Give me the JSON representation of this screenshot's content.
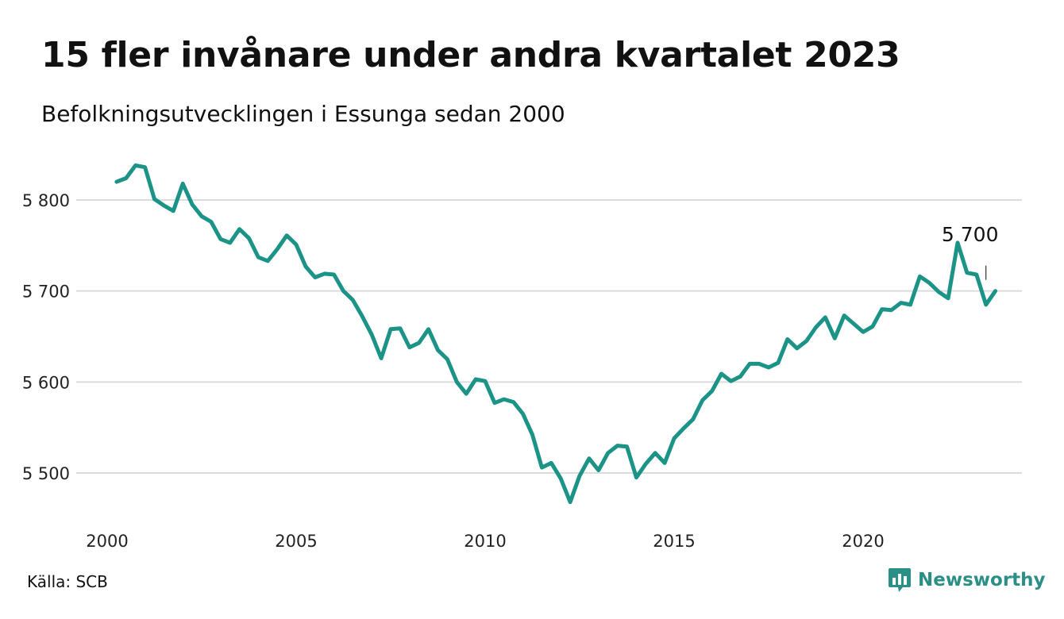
{
  "title": "15 fler invånare under andra kvartalet 2023",
  "subtitle": "Befolkningsutvecklingen i Essunga sedan 2000",
  "source": "Källa: SCB",
  "brand": "Newsworthy",
  "colors": {
    "line": "#1b9387",
    "grid": "#dcdcdc",
    "brand": "#2a8f86"
  },
  "icons": {
    "brand_logo": "bar-chart-speech-bubble-icon"
  },
  "chart_data": {
    "type": "line",
    "title": "15 fler invånare under andra kvartalet 2023",
    "subtitle": "Befolkningsutvecklingen i Essunga sedan 2000",
    "xlabel": "",
    "ylabel": "",
    "xlim": [
      2000,
      2023.75
    ],
    "ylim": [
      5450,
      5850
    ],
    "x_ticks": [
      2000,
      2005,
      2010,
      2015,
      2020
    ],
    "x_tick_labels": [
      "2000",
      "2005",
      "2010",
      "2015",
      "2020"
    ],
    "y_ticks": [
      5500,
      5600,
      5700,
      5800
    ],
    "y_tick_labels": [
      "5 500",
      "5 600",
      "5 700",
      "5 800"
    ],
    "grid": "horizontal",
    "annotation": {
      "text": "5 700",
      "x": 2023.25,
      "y": 5700
    },
    "series": [
      {
        "x_start": 2000.25,
        "x_step": 0.25,
        "values": [
          5820,
          5824,
          5838,
          5836,
          5801,
          5794,
          5788,
          5818,
          5795,
          5782,
          5776,
          5757,
          5753,
          5768,
          5758,
          5737,
          5733,
          5746,
          5761,
          5751,
          5727,
          5715,
          5719,
          5718,
          5700,
          5690,
          5672,
          5652,
          5626,
          5658,
          5659,
          5638,
          5643,
          5658,
          5635,
          5625,
          5600,
          5587,
          5603,
          5601,
          5577,
          5581,
          5578,
          5565,
          5542,
          5506,
          5511,
          5494,
          5468,
          5497,
          5516,
          5503,
          5522,
          5530,
          5529,
          5495,
          5510,
          5522,
          5511,
          5538,
          5549,
          5559,
          5580,
          5590,
          5609,
          5601,
          5606,
          5620,
          5620,
          5616,
          5621,
          5647,
          5637,
          5645,
          5660,
          5671,
          5648,
          5673,
          5664,
          5655,
          5661,
          5680,
          5679,
          5687,
          5685,
          5716,
          5709,
          5699,
          5692,
          5753,
          5720,
          5718,
          5685,
          5700
        ]
      }
    ]
  }
}
